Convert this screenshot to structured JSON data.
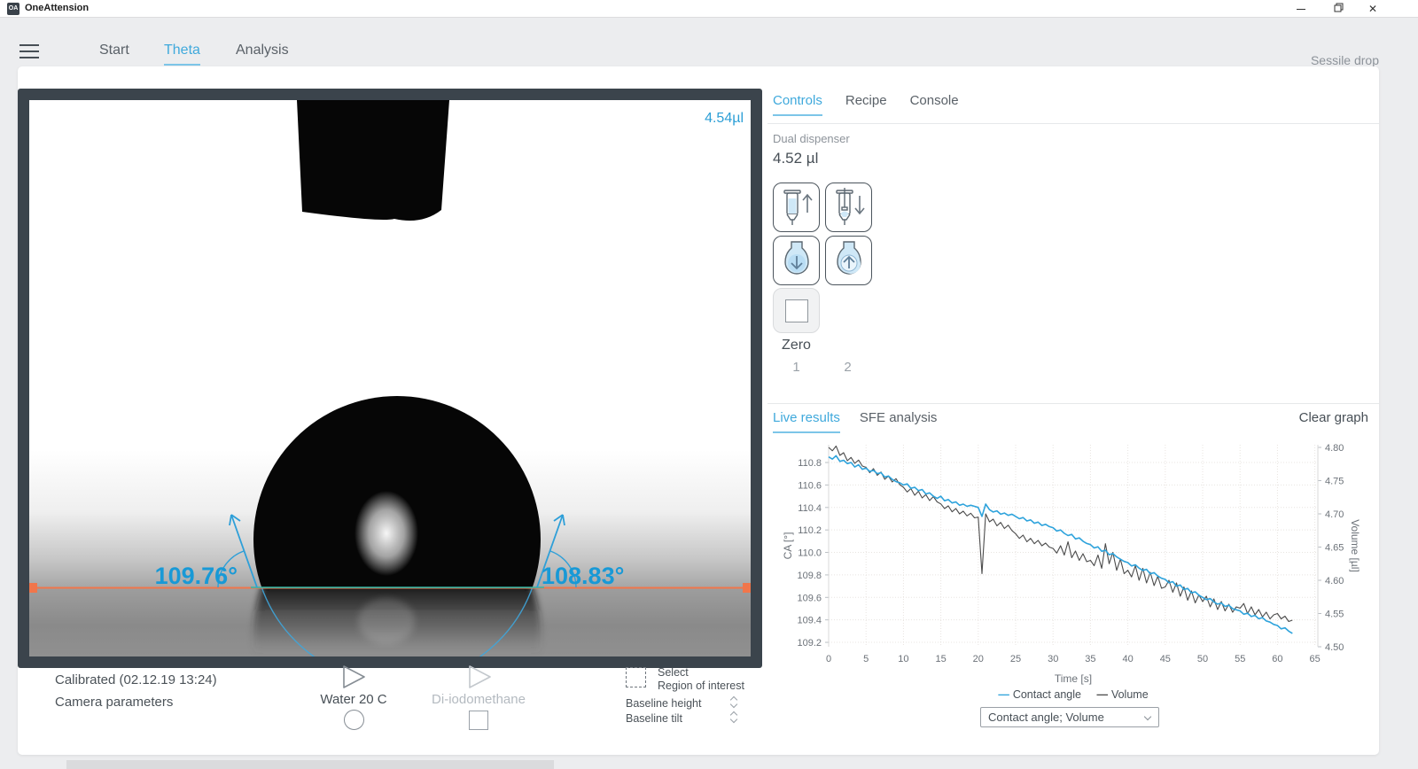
{
  "window": {
    "title": "OneAttension",
    "logo": "OA",
    "minimize": "",
    "restore": "",
    "close": "✕"
  },
  "nav": {
    "items": [
      {
        "label": "Start"
      },
      {
        "label": "Theta",
        "active": true
      },
      {
        "label": "Analysis"
      }
    ],
    "mode_label": "Sessile drop"
  },
  "camera": {
    "volume_overlay": "4.54µl",
    "left_angle": "109.76°",
    "right_angle": "108.83°",
    "baseline_color": "#f1764b",
    "contact_line_color": "#2fb9a9",
    "tangent_color": "#2e9fd8",
    "footer": {
      "calibrated": "Calibrated (02.12.19 13:24)",
      "camera_parameters": "Camera parameters",
      "liquid1_label": "Water 20 C",
      "liquid2_label": "Di-iodomethane",
      "roi_line1": "Select",
      "roi_line2": "Region of interest",
      "baseline_height_label": "Baseline height",
      "baseline_tilt_label": "Baseline tilt"
    }
  },
  "controls_panel": {
    "tabs": [
      "Controls",
      "Recipe",
      "Console"
    ],
    "dispenser_label": "Dual dispenser",
    "dispenser_volume": "4.52 µl",
    "button_icons": [
      "syringe-fill-up-icon",
      "syringe-empty-down-icon",
      "drop-dispense-down-icon",
      "drop-aspirate-up-icon"
    ],
    "zero_label": "Zero",
    "dispenser_tabs": [
      "1",
      "2"
    ],
    "accent_color": "#3fa9dc"
  },
  "results_panel": {
    "tabs": [
      "Live results",
      "SFE analysis"
    ],
    "clear_label": "Clear graph",
    "dropdown_value": "Contact angle; Volume"
  },
  "chart_data": {
    "type": "line",
    "xlabel": "Time [s]",
    "ylabel_left": "CA [°]",
    "ylabel_right": "Volume [µl]",
    "grid": true,
    "legend_position": "bottom",
    "xlim": [
      0,
      65.4
    ],
    "ylim_left": [
      109.161,
      110.958
    ],
    "ylim_right": [
      4.5,
      4.804
    ],
    "xticks_values": [
      0,
      5,
      10,
      15,
      20,
      25,
      30,
      35,
      40,
      45,
      50,
      55,
      60,
      65
    ],
    "xticks_labels": [
      "0",
      "5",
      "10",
      "15",
      "20",
      "25",
      "30",
      "35",
      "40",
      "45",
      "50",
      "55",
      "60",
      "65"
    ],
    "yticks_left_values": [
      109.2,
      109.4,
      109.6,
      109.8,
      110.0,
      110.2,
      110.4,
      110.6,
      110.8
    ],
    "yticks_left_labels": [
      "109.2",
      "109.4",
      "109.6",
      "109.8",
      "110.0",
      "110.2",
      "110.4",
      "110.6",
      "110.8"
    ],
    "yticks_right_values": [
      4.5,
      4.55,
      4.6,
      4.65,
      4.7,
      4.75,
      4.8
    ],
    "yticks_right_labels": [
      "4.50",
      "4.55",
      "4.60",
      "4.65",
      "4.70",
      "4.75",
      "4.80"
    ],
    "x": [
      0,
      0.5,
      1,
      1.5,
      2,
      2.5,
      3,
      3.5,
      4,
      4.5,
      5,
      5.5,
      6,
      6.5,
      7,
      7.5,
      8,
      8.5,
      9,
      9.5,
      10,
      10.5,
      11,
      11.5,
      12,
      12.5,
      13,
      13.5,
      14,
      14.5,
      15,
      15.5,
      16,
      16.5,
      17,
      17.5,
      18,
      18.5,
      19,
      19.5,
      20,
      20.5,
      21,
      21.5,
      22,
      22.5,
      23,
      23.5,
      24,
      24.5,
      25,
      25.5,
      26,
      26.5,
      27,
      27.5,
      28,
      28.5,
      29,
      29.5,
      30,
      30.5,
      31,
      31.5,
      32,
      32.5,
      33,
      33.5,
      34,
      34.5,
      35,
      35.5,
      36,
      36.5,
      37,
      37.5,
      38,
      38.5,
      39,
      39.5,
      40,
      40.5,
      41,
      41.5,
      42,
      42.5,
      43,
      43.5,
      44,
      44.5,
      45,
      45.5,
      46,
      46.5,
      47,
      47.5,
      48,
      48.5,
      49,
      49.5,
      50,
      50.5,
      51,
      51.5,
      52,
      52.5,
      53,
      53.5,
      54,
      54.5,
      55,
      55.5,
      56,
      56.5,
      57,
      57.5,
      58,
      58.5,
      59,
      59.5,
      60,
      60.5,
      61,
      61.5,
      62
    ],
    "series": [
      {
        "name": "Contact angle",
        "axis": "left",
        "color": "#2ea3dc",
        "values": [
          110.85,
          110.83,
          110.86,
          110.81,
          110.82,
          110.79,
          110.8,
          110.76,
          110.78,
          110.74,
          110.75,
          110.72,
          110.73,
          110.7,
          110.71,
          110.67,
          110.68,
          110.65,
          110.63,
          110.62,
          110.6,
          110.61,
          110.57,
          110.58,
          110.55,
          110.56,
          110.52,
          110.53,
          110.5,
          110.48,
          110.5,
          110.46,
          110.47,
          110.44,
          110.45,
          110.42,
          110.43,
          110.41,
          110.42,
          110.41,
          110.4,
          110.32,
          110.43,
          110.38,
          110.36,
          110.37,
          110.34,
          110.35,
          110.33,
          110.34,
          110.32,
          110.3,
          110.31,
          110.28,
          110.29,
          110.26,
          110.27,
          110.24,
          110.25,
          110.23,
          110.22,
          110.19,
          110.2,
          110.17,
          110.15,
          110.16,
          110.12,
          110.13,
          110.1,
          110.08,
          110.07,
          110.04,
          110.05,
          110.01,
          110.02,
          109.98,
          109.99,
          109.96,
          109.94,
          109.92,
          109.91,
          109.88,
          109.89,
          109.86,
          109.84,
          109.85,
          109.81,
          109.82,
          109.79,
          109.77,
          109.76,
          109.73,
          109.74,
          109.7,
          109.71,
          109.67,
          109.68,
          109.64,
          109.65,
          109.62,
          109.6,
          109.58,
          109.59,
          109.56,
          109.54,
          109.55,
          109.52,
          109.53,
          109.5,
          109.49,
          109.48,
          109.45,
          109.46,
          109.43,
          109.44,
          109.41,
          109.42,
          109.39,
          109.38,
          109.36,
          109.35,
          109.32,
          109.33,
          109.3,
          109.28
        ]
      },
      {
        "name": "Volume",
        "axis": "right",
        "color": "#4b4b4b",
        "values": [
          4.8,
          4.795,
          4.802,
          4.788,
          4.792,
          4.78,
          4.785,
          4.776,
          4.781,
          4.772,
          4.77,
          4.762,
          4.768,
          4.758,
          4.763,
          4.752,
          4.757,
          4.748,
          4.753,
          4.744,
          4.74,
          4.733,
          4.738,
          4.728,
          4.734,
          4.724,
          4.729,
          4.72,
          4.726,
          4.718,
          4.715,
          4.708,
          4.712,
          4.703,
          4.708,
          4.7,
          4.704,
          4.697,
          4.701,
          4.694,
          4.695,
          4.61,
          4.7,
          4.688,
          4.692,
          4.682,
          4.687,
          4.678,
          4.683,
          4.675,
          4.67,
          4.663,
          4.668,
          4.658,
          4.663,
          4.655,
          4.66,
          4.652,
          4.656,
          4.65,
          4.648,
          4.641,
          4.652,
          4.638,
          4.658,
          4.634,
          4.644,
          4.63,
          4.64,
          4.628,
          4.63,
          4.622,
          4.638,
          4.618,
          4.655,
          4.625,
          4.642,
          4.615,
          4.632,
          4.61,
          4.615,
          4.605,
          4.622,
          4.6,
          4.618,
          4.596,
          4.612,
          4.592,
          4.606,
          4.588,
          4.59,
          4.6,
          4.582,
          4.596,
          4.576,
          4.59,
          4.57,
          4.584,
          4.566,
          4.578,
          4.568,
          4.576,
          4.56,
          4.572,
          4.556,
          4.568,
          4.554,
          4.564,
          4.552,
          4.56,
          4.558,
          4.565,
          4.55,
          4.56,
          4.548,
          4.556,
          4.545,
          4.552,
          4.542,
          4.548,
          4.55,
          4.542,
          4.546,
          4.538,
          4.54
        ]
      }
    ]
  }
}
